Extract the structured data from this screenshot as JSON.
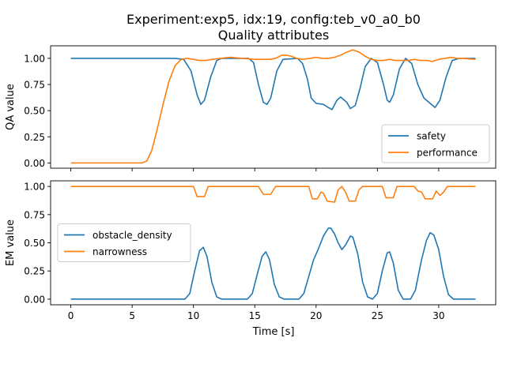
{
  "figure": {
    "title_line1": "Experiment:exp5, idx:19, config:teb_v0_a0_b0",
    "title_line2": "Quality attributes",
    "xlabel": "Time [s]",
    "colors": {
      "blue": "#1f77b4",
      "orange": "#ff7f0e"
    }
  },
  "chart_data": [
    {
      "type": "line",
      "title": "Quality attributes",
      "xlabel": "",
      "ylabel": "QA value",
      "xlim": [
        -1.65,
        34.65
      ],
      "ylim": [
        -0.05,
        1.12
      ],
      "xticks": [
        0,
        5,
        10,
        15,
        20,
        25,
        30
      ],
      "xtick_labels": [
        "0",
        "5",
        "10",
        "15",
        "20",
        "25",
        "30"
      ],
      "yticks": [
        0.0,
        0.25,
        0.5,
        0.75,
        1.0
      ],
      "ytick_labels": [
        "0.00",
        "0.25",
        "0.50",
        "0.75",
        "1.00"
      ],
      "legend_position": "lower-right",
      "series": [
        {
          "name": "safety",
          "color": "#1f77b4",
          "points": [
            [
              0,
              1.0
            ],
            [
              8.5,
              1.0
            ],
            [
              9.2,
              0.99
            ],
            [
              9.8,
              0.88
            ],
            [
              10.3,
              0.65
            ],
            [
              10.6,
              0.56
            ],
            [
              10.9,
              0.6
            ],
            [
              11.4,
              0.82
            ],
            [
              11.9,
              0.98
            ],
            [
              12.3,
              1.0
            ],
            [
              14.5,
              1.0
            ],
            [
              14.9,
              0.96
            ],
            [
              15.3,
              0.75
            ],
            [
              15.7,
              0.58
            ],
            [
              16.0,
              0.56
            ],
            [
              16.3,
              0.62
            ],
            [
              16.8,
              0.88
            ],
            [
              17.3,
              0.99
            ],
            [
              18.5,
              1.0
            ],
            [
              18.9,
              0.95
            ],
            [
              19.3,
              0.8
            ],
            [
              19.6,
              0.62
            ],
            [
              20.0,
              0.57
            ],
            [
              20.6,
              0.56
            ],
            [
              21.0,
              0.53
            ],
            [
              21.3,
              0.51
            ],
            [
              21.7,
              0.6
            ],
            [
              22.0,
              0.63
            ],
            [
              22.5,
              0.58
            ],
            [
              22.8,
              0.52
            ],
            [
              23.2,
              0.55
            ],
            [
              23.6,
              0.72
            ],
            [
              24.0,
              0.92
            ],
            [
              24.5,
              1.0
            ],
            [
              25.0,
              0.96
            ],
            [
              25.5,
              0.75
            ],
            [
              25.8,
              0.6
            ],
            [
              26.0,
              0.58
            ],
            [
              26.3,
              0.65
            ],
            [
              26.8,
              0.9
            ],
            [
              27.3,
              1.0
            ],
            [
              27.8,
              0.95
            ],
            [
              28.3,
              0.75
            ],
            [
              28.8,
              0.62
            ],
            [
              29.3,
              0.57
            ],
            [
              29.7,
              0.53
            ],
            [
              30.1,
              0.6
            ],
            [
              30.6,
              0.82
            ],
            [
              31.1,
              0.98
            ],
            [
              31.7,
              1.0
            ],
            [
              33,
              1.0
            ]
          ]
        },
        {
          "name": "performance",
          "color": "#ff7f0e",
          "points": [
            [
              0,
              0.0
            ],
            [
              5.8,
              0.0
            ],
            [
              6.2,
              0.02
            ],
            [
              6.6,
              0.12
            ],
            [
              7.0,
              0.3
            ],
            [
              7.5,
              0.55
            ],
            [
              8.0,
              0.78
            ],
            [
              8.5,
              0.93
            ],
            [
              9.0,
              0.99
            ],
            [
              9.5,
              1.0
            ],
            [
              10.0,
              0.99
            ],
            [
              10.5,
              0.98
            ],
            [
              11.0,
              0.98
            ],
            [
              11.5,
              0.99
            ],
            [
              12.2,
              1.0
            ],
            [
              13.0,
              1.01
            ],
            [
              14.0,
              1.0
            ],
            [
              15.0,
              0.99
            ],
            [
              15.6,
              0.99
            ],
            [
              16.2,
              0.99
            ],
            [
              16.7,
              1.0
            ],
            [
              17.2,
              1.03
            ],
            [
              17.6,
              1.03
            ],
            [
              18.0,
              1.02
            ],
            [
              18.4,
              1.0
            ],
            [
              18.9,
              0.99
            ],
            [
              19.5,
              1.0
            ],
            [
              20.0,
              1.01
            ],
            [
              20.5,
              1.0
            ],
            [
              21.0,
              1.0
            ],
            [
              21.5,
              1.01
            ],
            [
              22.0,
              1.03
            ],
            [
              22.5,
              1.06
            ],
            [
              23.0,
              1.08
            ],
            [
              23.5,
              1.06
            ],
            [
              24.0,
              1.02
            ],
            [
              24.5,
              0.99
            ],
            [
              25.0,
              0.98
            ],
            [
              25.5,
              0.98
            ],
            [
              26.0,
              0.99
            ],
            [
              26.5,
              0.98
            ],
            [
              27.0,
              0.98
            ],
            [
              27.5,
              0.98
            ],
            [
              28.0,
              0.99
            ],
            [
              28.5,
              0.98
            ],
            [
              29.0,
              0.98
            ],
            [
              29.5,
              0.97
            ],
            [
              30.0,
              0.99
            ],
            [
              30.5,
              1.0
            ],
            [
              31.0,
              1.01
            ],
            [
              31.5,
              1.0
            ],
            [
              32.0,
              1.0
            ],
            [
              33,
              0.99
            ]
          ]
        }
      ]
    },
    {
      "type": "line",
      "title": "",
      "xlabel": "Time [s]",
      "ylabel": "EM value",
      "xlim": [
        -1.65,
        34.65
      ],
      "ylim": [
        -0.05,
        1.05
      ],
      "xticks": [
        0,
        5,
        10,
        15,
        20,
        25,
        30
      ],
      "xtick_labels": [
        "0",
        "5",
        "10",
        "15",
        "20",
        "25",
        "30"
      ],
      "yticks": [
        0.0,
        0.25,
        0.5,
        0.75,
        1.0
      ],
      "ytick_labels": [
        "0.00",
        "0.25",
        "0.50",
        "0.75",
        "1.00"
      ],
      "legend_position": "center-left",
      "series": [
        {
          "name": "obstacle_density",
          "color": "#1f77b4",
          "points": [
            [
              0,
              0.0
            ],
            [
              9.3,
              0.0
            ],
            [
              9.7,
              0.05
            ],
            [
              10.1,
              0.25
            ],
            [
              10.5,
              0.43
            ],
            [
              10.8,
              0.46
            ],
            [
              11.1,
              0.38
            ],
            [
              11.5,
              0.15
            ],
            [
              11.9,
              0.02
            ],
            [
              12.3,
              0.0
            ],
            [
              14.4,
              0.0
            ],
            [
              14.8,
              0.05
            ],
            [
              15.2,
              0.22
            ],
            [
              15.6,
              0.38
            ],
            [
              15.9,
              0.42
            ],
            [
              16.2,
              0.35
            ],
            [
              16.6,
              0.13
            ],
            [
              17.0,
              0.02
            ],
            [
              17.4,
              0.0
            ],
            [
              18.6,
              0.0
            ],
            [
              19.0,
              0.05
            ],
            [
              19.4,
              0.2
            ],
            [
              19.8,
              0.35
            ],
            [
              20.2,
              0.45
            ],
            [
              20.6,
              0.56
            ],
            [
              21.0,
              0.63
            ],
            [
              21.2,
              0.63
            ],
            [
              21.5,
              0.58
            ],
            [
              21.8,
              0.5
            ],
            [
              22.1,
              0.44
            ],
            [
              22.4,
              0.48
            ],
            [
              22.8,
              0.56
            ],
            [
              23.0,
              0.55
            ],
            [
              23.4,
              0.4
            ],
            [
              23.8,
              0.15
            ],
            [
              24.2,
              0.02
            ],
            [
              24.6,
              0.0
            ],
            [
              25.0,
              0.05
            ],
            [
              25.4,
              0.25
            ],
            [
              25.8,
              0.41
            ],
            [
              26.0,
              0.42
            ],
            [
              26.3,
              0.32
            ],
            [
              26.7,
              0.08
            ],
            [
              27.1,
              0.0
            ],
            [
              27.7,
              0.0
            ],
            [
              28.1,
              0.08
            ],
            [
              28.6,
              0.35
            ],
            [
              29.0,
              0.52
            ],
            [
              29.3,
              0.59
            ],
            [
              29.6,
              0.57
            ],
            [
              30.0,
              0.44
            ],
            [
              30.4,
              0.2
            ],
            [
              30.8,
              0.04
            ],
            [
              31.2,
              0.0
            ],
            [
              33,
              0.0
            ]
          ]
        },
        {
          "name": "narrowness",
          "color": "#ff7f0e",
          "points": [
            [
              0,
              1.0
            ],
            [
              10.0,
              1.0
            ],
            [
              10.3,
              0.91
            ],
            [
              10.9,
              0.91
            ],
            [
              11.2,
              1.0
            ],
            [
              15.3,
              1.0
            ],
            [
              15.7,
              0.93
            ],
            [
              16.3,
              0.93
            ],
            [
              16.7,
              1.0
            ],
            [
              19.4,
              1.0
            ],
            [
              19.7,
              0.89
            ],
            [
              20.1,
              0.89
            ],
            [
              20.4,
              0.95
            ],
            [
              20.6,
              0.94
            ],
            [
              20.9,
              0.87
            ],
            [
              21.5,
              0.86
            ],
            [
              21.8,
              0.97
            ],
            [
              22.1,
              1.0
            ],
            [
              22.4,
              0.95
            ],
            [
              22.7,
              0.87
            ],
            [
              23.2,
              0.87
            ],
            [
              23.5,
              0.97
            ],
            [
              23.8,
              1.0
            ],
            [
              25.4,
              1.0
            ],
            [
              25.7,
              0.9
            ],
            [
              26.3,
              0.9
            ],
            [
              26.6,
              1.0
            ],
            [
              28.0,
              1.0
            ],
            [
              28.3,
              0.96
            ],
            [
              28.6,
              0.95
            ],
            [
              28.9,
              0.89
            ],
            [
              29.5,
              0.89
            ],
            [
              29.8,
              0.96
            ],
            [
              30.1,
              0.92
            ],
            [
              30.4,
              0.95
            ],
            [
              30.7,
              1.0
            ],
            [
              33,
              1.0
            ]
          ]
        }
      ]
    }
  ]
}
